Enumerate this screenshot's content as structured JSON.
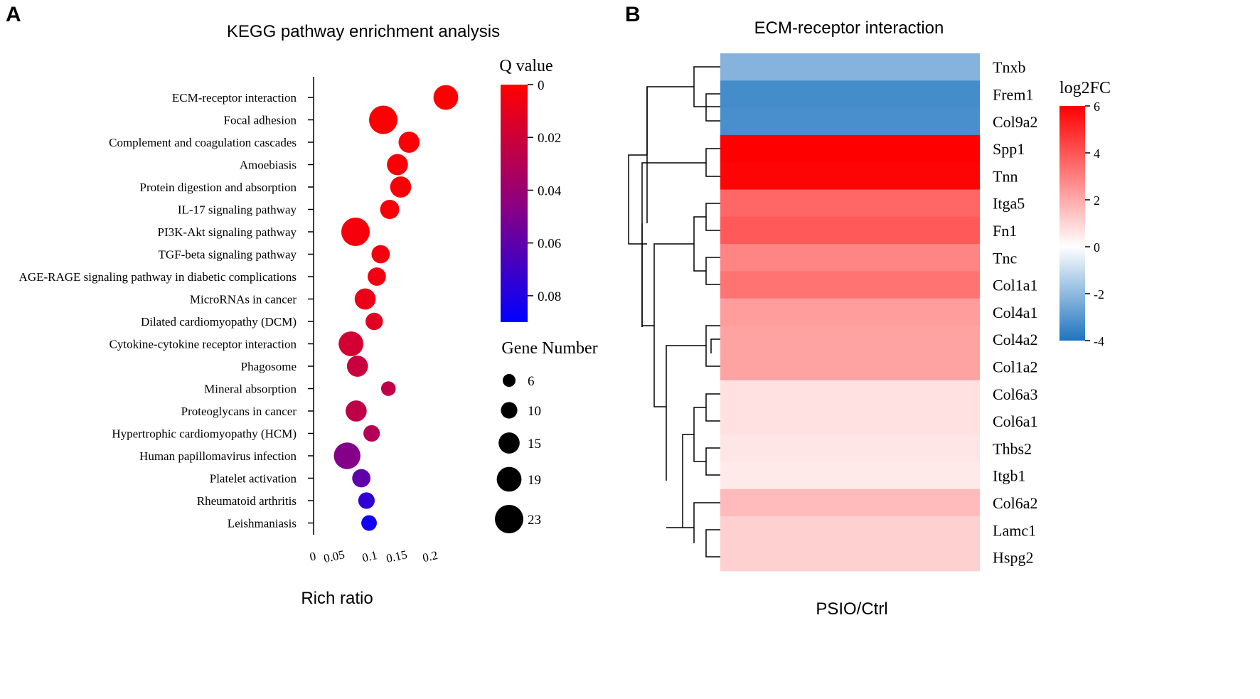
{
  "panels": {
    "a_letter": "A",
    "b_letter": "B"
  },
  "chart_data": [
    {
      "type": "scatter",
      "title": "KEGG pathway enrichment analysis",
      "xlabel": "Rich ratio",
      "ylabel": "",
      "xlim": [
        0,
        0.21
      ],
      "xticks": [
        0,
        0.05,
        0.1,
        0.15,
        0.2
      ],
      "xtick_labels": [
        "0",
        "0.05",
        "0.1",
        "0.15",
        "0.2"
      ],
      "categories": [
        "ECM-receptor interaction",
        "Focal adhesion",
        "Complement and coagulation cascades",
        "Amoebiasis",
        "Protein digestion and absorption",
        "IL-17 signaling pathway",
        "PI3K-Akt signaling pathway",
        "TGF-beta signaling pathway",
        "AGE-RAGE signaling pathway in diabetic complications",
        "MicroRNAs in cancer",
        "Dilated cardiomyopathy (DCM)",
        "Cytokine-cytokine receptor interaction",
        "Phagosome",
        "Mineral absorption",
        "Proteoglycans in cancer",
        "Hypertrophic cardiomyopathy (HCM)",
        "Human papillomavirus infection",
        "Platelet activation",
        "Rheumatoid arthritis",
        "Leishmaniasis"
      ],
      "rich_ratio": [
        0.205,
        0.108,
        0.148,
        0.13,
        0.135,
        0.118,
        0.065,
        0.104,
        0.098,
        0.08,
        0.094,
        0.058,
        0.068,
        0.116,
        0.066,
        0.09,
        0.052,
        0.074,
        0.082,
        0.086
      ],
      "q_value": [
        0.0,
        0.001,
        0.002,
        0.002,
        0.003,
        0.003,
        0.004,
        0.005,
        0.006,
        0.008,
        0.012,
        0.018,
        0.022,
        0.025,
        0.026,
        0.03,
        0.048,
        0.06,
        0.075,
        0.085
      ],
      "gene_number": [
        19,
        23,
        15,
        15,
        15,
        13,
        23,
        12,
        12,
        15,
        11,
        19,
        15,
        8,
        15,
        10,
        21,
        12,
        10,
        9
      ],
      "color_legend": {
        "title": "Q value",
        "min": 0,
        "max": 0.09,
        "ticks": [
          0,
          0.02,
          0.04,
          0.06,
          0.08
        ],
        "tick_labels": [
          "0",
          "0.02",
          "0.04",
          "0.06",
          "0.08"
        ],
        "color_low": "#ff0000",
        "color_high": "#0000ff"
      },
      "size_legend": {
        "title": "Gene Number",
        "values": [
          6,
          10,
          15,
          19,
          23
        ],
        "labels": [
          "6",
          "10",
          "15",
          "19",
          "23"
        ]
      }
    },
    {
      "type": "heatmap",
      "title": "ECM-receptor interaction",
      "xlabel": "PSIO/Ctrl",
      "rows": [
        "Tnxb",
        "Frem1",
        "Col9a2",
        "Spp1",
        "Tnn",
        "Itga5",
        "Fn1",
        "Tnc",
        "Col1a1",
        "Col4a1",
        "Col4a2",
        "Col1a2",
        "Col6a3",
        "Col6a1",
        "Thbs2",
        "Itgb1",
        "Col6a2",
        "Lamc1",
        "Hspg2"
      ],
      "values": [
        -2.3,
        -3.5,
        -3.4,
        6.0,
        5.9,
        3.6,
        3.9,
        2.9,
        3.3,
        2.3,
        2.2,
        2.2,
        0.7,
        0.7,
        0.6,
        0.5,
        1.6,
        1.1,
        1.1
      ],
      "colorbar": {
        "title": "log2FC",
        "min": -4,
        "max": 6,
        "ticks": [
          6,
          4,
          2,
          0,
          -2,
          -4
        ],
        "tick_labels": [
          "6",
          "4",
          "2",
          "0",
          "-2",
          "-4"
        ],
        "color_low": "#2a7bc4",
        "color_mid": "#ffffff",
        "color_high": "#ff0000"
      }
    }
  ]
}
